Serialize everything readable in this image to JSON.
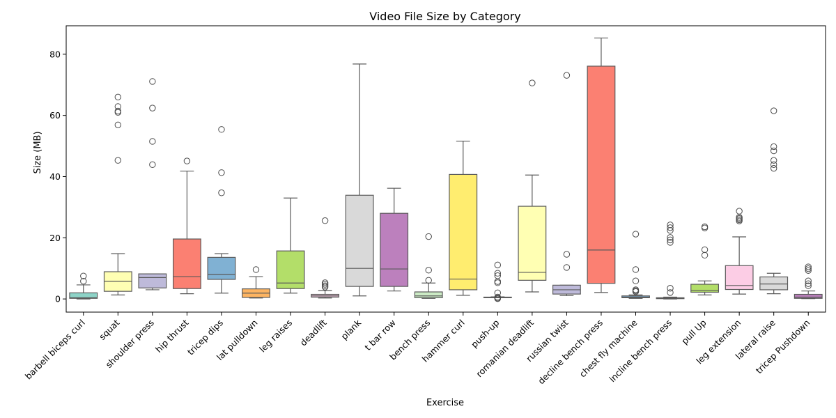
{
  "chart_data": {
    "type": "box",
    "title": "Video File Size by Category",
    "xlabel": "Exercise",
    "ylabel": "Size (MB)",
    "ylim": [
      -4.3,
      89.3
    ],
    "yticks": [
      0,
      20,
      40,
      60,
      80
    ],
    "grid": false,
    "legend": "none",
    "categories": [
      {
        "name": "barbell biceps curl",
        "color": "#8dd3c7",
        "q1": 0.2,
        "median": 0.4,
        "q3": 2.0,
        "whisker_low": 0.0,
        "whisker_high": 4.6,
        "outliers": [
          5.8,
          7.5
        ]
      },
      {
        "name": "squat",
        "color": "#ffffb3",
        "q1": 2.5,
        "median": 5.8,
        "q3": 8.9,
        "whisker_low": 1.3,
        "whisker_high": 14.8,
        "outliers": [
          45.3,
          56.9,
          61.0,
          61.4,
          62.9,
          66.0
        ]
      },
      {
        "name": "shoulder press",
        "color": "#bebada",
        "q1": 3.6,
        "median": 7.0,
        "q3": 8.2,
        "whisker_low": 3.0,
        "whisker_high": 8.2,
        "outliers": [
          43.9,
          51.5,
          62.4,
          71.1
        ]
      },
      {
        "name": "hip thrust",
        "color": "#fb8072",
        "q1": 3.4,
        "median": 7.3,
        "q3": 19.6,
        "whisker_low": 1.7,
        "whisker_high": 41.8,
        "outliers": [
          45.1
        ]
      },
      {
        "name": "tricep dips",
        "color": "#80b1d3",
        "q1": 6.4,
        "median": 8.0,
        "q3": 13.6,
        "whisker_low": 1.9,
        "whisker_high": 14.8,
        "outliers": [
          34.7,
          41.3,
          55.4
        ]
      },
      {
        "name": "lat pulldown",
        "color": "#fdb462",
        "q1": 0.5,
        "median": 1.9,
        "q3": 3.3,
        "whisker_low": 0.3,
        "whisker_high": 7.3,
        "outliers": [
          9.6
        ]
      },
      {
        "name": "leg raises",
        "color": "#b3de69",
        "q1": 3.4,
        "median": 5.2,
        "q3": 15.7,
        "whisker_low": 1.9,
        "whisker_high": 33.0,
        "outliers": []
      },
      {
        "name": "deadlift",
        "color": "#fccde5",
        "q1": 0.6,
        "median": 1.0,
        "q3": 1.5,
        "whisker_low": 0.3,
        "whisker_high": 2.7,
        "outliers": [
          3.9,
          4.3,
          4.8,
          5.3,
          25.6
        ]
      },
      {
        "name": "plank",
        "color": "#d9d9d9",
        "q1": 4.1,
        "median": 10.0,
        "q3": 33.9,
        "whisker_low": 1.0,
        "whisker_high": 76.8,
        "outliers": []
      },
      {
        "name": "t bar row",
        "color": "#bc80bd",
        "q1": 4.1,
        "median": 9.8,
        "q3": 28.0,
        "whisker_low": 2.6,
        "whisker_high": 36.2,
        "outliers": []
      },
      {
        "name": "bench press",
        "color": "#ccebc5",
        "q1": 0.4,
        "median": 1.0,
        "q3": 2.3,
        "whisker_low": 0.2,
        "whisker_high": 5.2,
        "outliers": [
          6.1,
          9.4,
          20.4
        ]
      },
      {
        "name": "hammer curl",
        "color": "#ffed6f",
        "q1": 3.0,
        "median": 6.5,
        "q3": 40.7,
        "whisker_low": 1.2,
        "whisker_high": 51.6,
        "outliers": []
      },
      {
        "name": "push-up",
        "color": "#8dd3c7",
        "q1": 0.4,
        "median": 0.5,
        "q3": 0.6,
        "whisker_low": 0.4,
        "whisker_high": 0.7,
        "outliers": [
          0.1,
          0.3,
          0.6,
          2.0,
          5.3,
          5.7,
          7.6,
          8.4,
          11.1
        ]
      },
      {
        "name": "romanian deadlift",
        "color": "#ffffb3",
        "q1": 6.1,
        "median": 8.7,
        "q3": 30.3,
        "whisker_low": 2.3,
        "whisker_high": 40.5,
        "outliers": [
          70.6
        ]
      },
      {
        "name": "russian twist",
        "color": "#bebada",
        "q1": 1.6,
        "median": 3.0,
        "q3": 4.5,
        "whisker_low": 1.1,
        "whisker_high": 4.5,
        "outliers": [
          10.3,
          14.6,
          73.1
        ]
      },
      {
        "name": "decline bench press",
        "color": "#fb8072",
        "q1": 5.1,
        "median": 16.0,
        "q3": 76.1,
        "whisker_low": 2.1,
        "whisker_high": 85.3,
        "outliers": []
      },
      {
        "name": "chest fly machine",
        "color": "#80b1d3",
        "q1": 0.4,
        "median": 0.6,
        "q3": 1.0,
        "whisker_low": 0.2,
        "whisker_high": 1.3,
        "outliers": [
          2.4,
          2.7,
          3.0,
          5.9,
          9.6,
          21.2
        ]
      },
      {
        "name": "incline bench press",
        "color": "#fdb462",
        "q1": 0.1,
        "median": 0.2,
        "q3": 0.4,
        "whisker_low": 0.0,
        "whisker_high": 0.6,
        "outliers": [
          2.1,
          3.5,
          18.5,
          19.3,
          20.1,
          22.4,
          23.3,
          24.2
        ]
      },
      {
        "name": "pull Up",
        "color": "#b3de69",
        "q1": 2.2,
        "median": 2.8,
        "q3": 4.8,
        "whisker_low": 1.3,
        "whisker_high": 5.9,
        "outliers": [
          14.3,
          16.1,
          23.2,
          23.6
        ]
      },
      {
        "name": "leg extension",
        "color": "#fccde5",
        "q1": 3.1,
        "median": 4.4,
        "q3": 10.9,
        "whisker_low": 1.6,
        "whisker_high": 20.3,
        "outliers": [
          25.5,
          25.9,
          26.3,
          26.7,
          28.7
        ]
      },
      {
        "name": "lateral raise",
        "color": "#d9d9d9",
        "q1": 3.0,
        "median": 4.9,
        "q3": 7.2,
        "whisker_low": 1.7,
        "whisker_high": 8.4,
        "outliers": [
          42.7,
          43.9,
          45.3,
          48.4,
          49.8,
          61.5
        ]
      },
      {
        "name": "tricep Pushdown",
        "color": "#bc80bd",
        "q1": 0.2,
        "median": 0.6,
        "q3": 1.5,
        "whisker_low": 0.1,
        "whisker_high": 2.6,
        "outliers": [
          4.3,
          5.0,
          5.9,
          9.3,
          9.9,
          10.5
        ]
      }
    ]
  }
}
